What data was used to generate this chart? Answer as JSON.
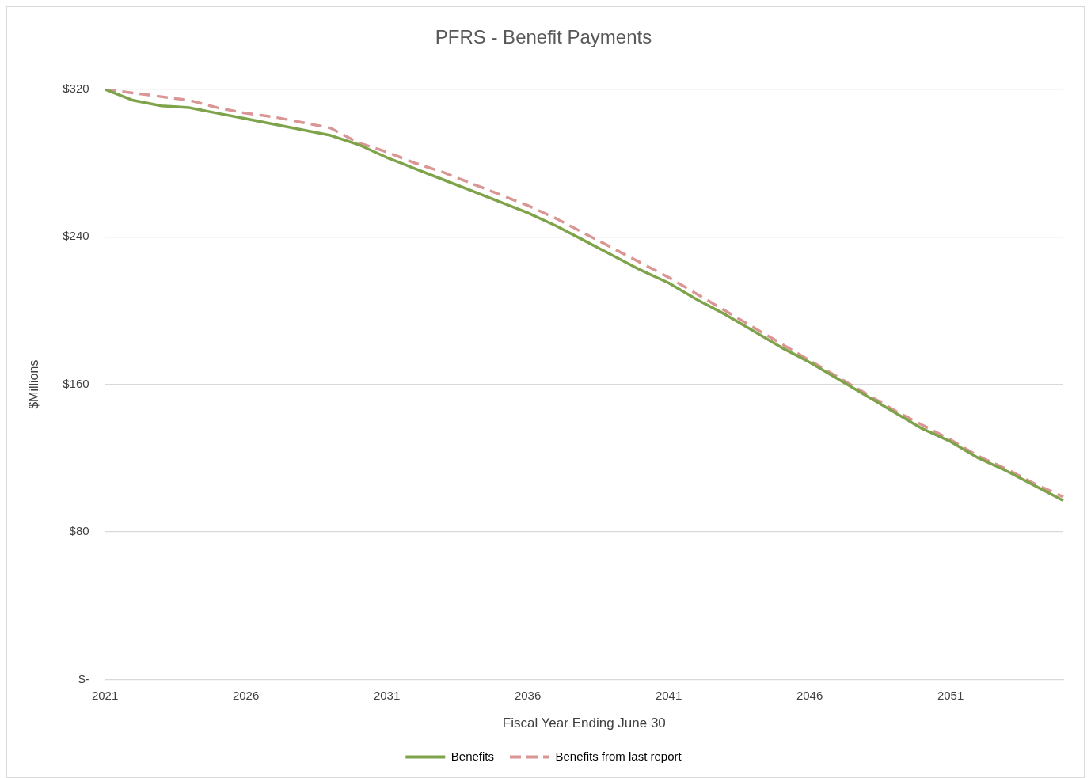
{
  "chart_data": {
    "type": "line",
    "title": "PFRS - Benefit Payments",
    "xlabel": "Fiscal Year Ending June 30",
    "ylabel": "$Millions",
    "categories": [
      "2021",
      null,
      null,
      null,
      null,
      "2026",
      null,
      null,
      null,
      null,
      "2031",
      null,
      null,
      null,
      null,
      "2036",
      null,
      null,
      null,
      null,
      "2041",
      null,
      null,
      null,
      null,
      "2046",
      null,
      null,
      null,
      null,
      "2051",
      null,
      null,
      null,
      null
    ],
    "series": [
      {
        "name": "Benefits",
        "color": "#7ea34a",
        "line_style": "solid",
        "values": [
          320,
          314,
          311,
          310,
          307,
          304,
          301,
          298,
          295,
          290,
          283,
          277,
          271,
          265,
          259,
          253,
          246,
          238,
          230,
          222,
          215,
          206,
          198,
          189,
          180,
          172,
          163,
          154,
          145,
          136,
          129,
          120,
          113,
          105,
          97
        ]
      },
      {
        "name": "Benefits from last report",
        "color": "#d99694",
        "line_style": "dashed",
        "values": [
          320,
          318,
          316,
          314,
          310,
          307,
          305,
          302,
          299,
          291,
          286,
          280,
          275,
          269,
          263,
          257,
          250,
          242,
          234,
          226,
          218,
          209,
          200,
          191,
          182,
          173,
          164,
          155,
          146,
          138,
          130,
          121,
          114,
          106,
          99
        ]
      }
    ],
    "ylim": [
      0,
      320
    ],
    "yticks": [
      {
        "value": 0,
        "label": "$-"
      },
      {
        "value": 80,
        "label": "$80"
      },
      {
        "value": 160,
        "label": "$160"
      },
      {
        "value": 240,
        "label": "$240"
      },
      {
        "value": 320,
        "label": "$320"
      }
    ],
    "grid": "y",
    "legend": "bottom",
    "marker": "none"
  }
}
